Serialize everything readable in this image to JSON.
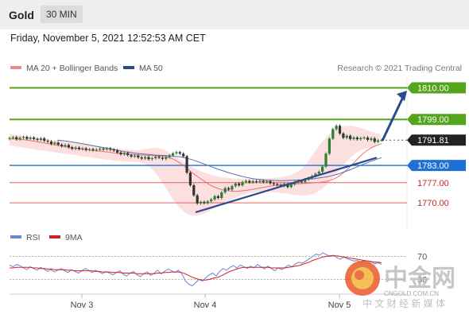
{
  "header": {
    "instrument": "Gold",
    "timeframe": "30 MIN"
  },
  "datetime": "Friday, November 5, 2021 12:52:53 AM CET",
  "legend": {
    "ma20": {
      "label": "MA 20 + Bollinger Bands",
      "color": "#f08a8a"
    },
    "ma50": {
      "label": "MA 50",
      "color": "#2d4a8a"
    },
    "rsi": {
      "label": "RSI",
      "color": "#6a86d8"
    },
    "ma9": {
      "label": "9MA",
      "color": "#d42020"
    }
  },
  "credit": "Research © 2021 Trading Central",
  "watermark": {
    "brand": "中金网",
    "url": "CNGOLD.COM.CN",
    "slogan": "中 文 财 经 新 媒 体"
  },
  "colors": {
    "up": "#2e7d32",
    "down": "#333333",
    "resistance": "#55a51c",
    "support": "#1f6fd6",
    "target": "#e06060",
    "current": "#222222",
    "trend": "#2a4a90"
  },
  "chart_data": [
    {
      "type": "candlestick",
      "ylim": [
        1762,
        1814
      ],
      "xticks": [
        "Nov 3",
        "Nov 4",
        "Nov 5"
      ],
      "levels": [
        {
          "value": 1810.0,
          "label": "1810.00",
          "kind": "resistance"
        },
        {
          "value": 1799.0,
          "label": "1799.00",
          "kind": "resistance"
        },
        {
          "value": 1791.81,
          "label": "1791.81",
          "kind": "current"
        },
        {
          "value": 1783.0,
          "label": "1783.00",
          "kind": "support"
        },
        {
          "value": 1777.0,
          "label": "1777.00",
          "kind": "target"
        },
        {
          "value": 1770.0,
          "label": "1770.00",
          "kind": "target"
        }
      ],
      "close": [
        1792.5,
        1792.8,
        1792.1,
        1792.6,
        1792.9,
        1792.3,
        1792.7,
        1792.2,
        1791.9,
        1792.4,
        1791.6,
        1791.3,
        1790.5,
        1790.9,
        1790.2,
        1789.7,
        1790.1,
        1789.3,
        1788.8,
        1789.2,
        1788.7,
        1788.9,
        1788.4,
        1788.6,
        1788.3,
        1788.5,
        1788.8,
        1788.6,
        1788.9,
        1788.5,
        1788.2,
        1787.5,
        1786.9,
        1787.3,
        1786.6,
        1786.1,
        1786.4,
        1785.8,
        1785.4,
        1785.9,
        1785.2,
        1785.5,
        1786.0,
        1785.7,
        1785.3,
        1785.9,
        1786.5,
        1787.2,
        1787.6,
        1787.1,
        1786.2,
        1780.5,
        1776.1,
        1772.6,
        1769.8,
        1770.3,
        1769.9,
        1770.5,
        1771.2,
        1772.3,
        1771.7,
        1773.6,
        1775.1,
        1774.6,
        1775.8,
        1776.7,
        1776.1,
        1777.2,
        1777.6,
        1777.1,
        1777.5,
        1777.3,
        1777.6,
        1777.2,
        1777.5,
        1776.8,
        1776.5,
        1776.2,
        1775.9,
        1776.6,
        1775.5,
        1776.4,
        1777.2,
        1777.6,
        1777.3,
        1778.1,
        1778.6,
        1779.3,
        1780.1,
        1780.8,
        1782.6,
        1787.1,
        1792.3,
        1795.6,
        1796.8,
        1794.1,
        1792.6,
        1793.3,
        1792.2,
        1792.7,
        1792.1,
        1792.5,
        1792.7,
        1791.9,
        1792.4,
        1791.2,
        1791.7,
        1791.81
      ],
      "ma20": [
        1792.3,
        1792.2,
        1792.1,
        1791.9,
        1791.7,
        1791.4,
        1791.1,
        1790.8,
        1790.5,
        1790.2,
        1789.9,
        1789.6,
        1789.3,
        1789.0,
        1788.8,
        1788.6,
        1788.4,
        1788.2,
        1788.0,
        1787.8,
        1787.6,
        1787.4,
        1787.2,
        1787.0,
        1786.9,
        1786.8,
        1786.7,
        1786.6,
        1786.5,
        1786.4,
        1786.3,
        1786.2,
        1785.9,
        1785.2,
        1784.2,
        1783.0,
        1781.7,
        1780.2,
        1779.0,
        1777.8,
        1776.6,
        1775.7,
        1775.0,
        1774.5,
        1774.2,
        1774.0,
        1774.0,
        1774.2,
        1774.4,
        1774.7,
        1775.0,
        1775.3,
        1775.6,
        1775.9,
        1776.1,
        1776.3,
        1776.4,
        1776.5,
        1776.6,
        1776.7,
        1776.8,
        1776.9,
        1777.0,
        1777.2,
        1777.5,
        1778.0,
        1778.8,
        1780.0,
        1781.5,
        1783.2,
        1785.0,
        1786.7,
        1788.1,
        1789.2,
        1790.0,
        1790.6
      ],
      "ma20_x0": 0,
      "ma50": [
        1791.8,
        1791.6,
        1791.3,
        1791.0,
        1790.6,
        1790.2,
        1789.8,
        1789.4,
        1789.0,
        1788.6,
        1788.2,
        1787.8,
        1787.5,
        1787.2,
        1787.0,
        1786.8,
        1786.6,
        1786.5,
        1786.4,
        1786.2,
        1786.0,
        1785.6,
        1785.0,
        1784.3,
        1783.5,
        1782.7,
        1781.9,
        1781.2,
        1780.5,
        1779.9,
        1779.3,
        1778.8,
        1778.4,
        1778.1,
        1777.9,
        1777.8,
        1777.7,
        1777.7,
        1777.8,
        1777.9,
        1778.0,
        1778.2,
        1778.4,
        1778.7,
        1779.0,
        1779.5,
        1780.1,
        1780.8,
        1781.6,
        1782.5,
        1783.4,
        1784.2,
        1785.0,
        1785.7
      ],
      "bb_upper": [
        1794.0,
        1793.6,
        1793.3,
        1792.9,
        1792.6,
        1792.4,
        1792.1,
        1791.8,
        1791.6,
        1791.3,
        1791.0,
        1790.8,
        1790.5,
        1790.2,
        1789.9,
        1789.6,
        1789.3,
        1789.0,
        1788.8,
        1788.6,
        1788.4,
        1788.3,
        1788.5,
        1789.0,
        1789.2,
        1788.8,
        1787.8,
        1786.4,
        1785.0,
        1783.6,
        1782.4,
        1781.4,
        1780.5,
        1779.8,
        1779.2,
        1778.8,
        1778.6,
        1778.4,
        1778.3,
        1778.3,
        1778.4,
        1778.4,
        1778.5,
        1778.6,
        1778.8,
        1779.1,
        1779.6,
        1780.5,
        1782.0,
        1784.5,
        1787.6,
        1790.6,
        1793.0,
        1795.0,
        1796.2,
        1796.8,
        1796.8,
        1796.4,
        1795.8,
        1795.0,
        1794.3,
        1793.8
      ],
      "bb_lower": [
        1790.0,
        1789.6,
        1789.3,
        1789.0,
        1788.6,
        1788.3,
        1788.0,
        1787.7,
        1787.4,
        1787.1,
        1786.8,
        1786.5,
        1786.2,
        1785.9,
        1785.6,
        1785.3,
        1785.0,
        1784.7,
        1784.5,
        1784.3,
        1784.2,
        1784.2,
        1783.8,
        1782.5,
        1780.2,
        1777.2,
        1773.8,
        1770.6,
        1768.0,
        1766.2,
        1765.5,
        1765.6,
        1766.3,
        1767.3,
        1768.5,
        1769.7,
        1770.8,
        1771.8,
        1772.6,
        1773.2,
        1773.6,
        1773.8,
        1773.8,
        1773.7,
        1773.5,
        1773.3,
        1773.0,
        1772.7,
        1772.5,
        1772.6,
        1773.2,
        1774.4,
        1776.2,
        1778.6,
        1781.2,
        1783.8,
        1786.0,
        1787.6,
        1788.6,
        1789.1,
        1789.3
      ],
      "trendline": {
        "from": 1766.7,
        "to": 1785.7
      },
      "projection": {
        "from": 1791.6,
        "to": 1809.0
      }
    },
    {
      "type": "line",
      "yticks": [
        70,
        30
      ],
      "rsi": [
        55,
        52,
        56,
        54,
        50,
        47,
        52,
        49,
        46,
        51,
        48,
        44,
        47,
        43,
        46,
        49,
        45,
        42,
        47,
        44,
        41,
        45,
        49,
        46,
        42,
        46,
        43,
        40,
        44,
        41,
        38,
        42,
        45,
        39,
        36,
        41,
        44,
        38,
        35,
        40,
        43,
        37,
        41,
        46,
        40,
        44,
        48,
        45,
        42,
        46,
        40,
        28,
        22,
        19,
        24,
        30,
        27,
        33,
        38,
        41,
        36,
        44,
        49,
        46,
        51,
        54,
        50,
        55,
        52,
        49,
        53,
        50,
        56,
        52,
        48,
        53,
        49,
        45,
        50,
        47,
        51,
        55,
        52,
        57,
        60,
        58,
        62,
        66,
        70,
        74,
        72,
        76,
        73,
        70,
        72,
        68,
        65,
        69,
        66,
        64,
        62,
        63,
        60,
        62,
        58,
        61,
        57,
        59,
        56
      ],
      "ma9": [
        50,
        50,
        51,
        51,
        51,
        51,
        51,
        50,
        50,
        49,
        49,
        48,
        48,
        47,
        47,
        47,
        47,
        46,
        46,
        45,
        45,
        45,
        45,
        45,
        45,
        44,
        44,
        43,
        43,
        43,
        42,
        42,
        42,
        41,
        41,
        41,
        41,
        40,
        40,
        40,
        40,
        40,
        40,
        41,
        41,
        42,
        42,
        43,
        43,
        43,
        42,
        40,
        37,
        34,
        32,
        30,
        29,
        29,
        30,
        32,
        33,
        35,
        38,
        41,
        44,
        46,
        48,
        50,
        51,
        51,
        51,
        51,
        51,
        51,
        51,
        51,
        50,
        50,
        50,
        50,
        50,
        51,
        52,
        53,
        54,
        56,
        58,
        60,
        63,
        65,
        67,
        69,
        70,
        71,
        71,
        71,
        70,
        69,
        68,
        67,
        66,
        65,
        64,
        63,
        62,
        61,
        60,
        60,
        59
      ]
    }
  ]
}
